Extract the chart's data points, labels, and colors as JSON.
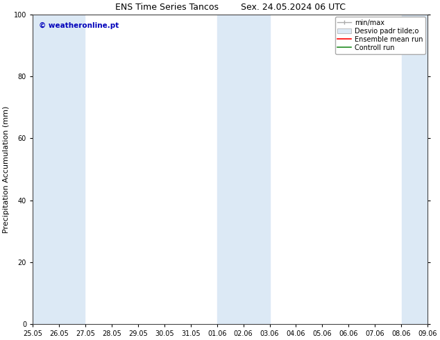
{
  "title_left": "ENS Time Series Tancos",
  "title_right": "Sex. 24.05.2024 06 UTC",
  "ylabel": "Precipitation Accumulation (mm)",
  "ylim": [
    0,
    100
  ],
  "yticks": [
    0,
    20,
    40,
    60,
    80,
    100
  ],
  "x_tick_labels": [
    "25.05",
    "26.05",
    "27.05",
    "28.05",
    "29.05",
    "30.05",
    "31.05",
    "01.06",
    "02.06",
    "03.06",
    "04.06",
    "05.06",
    "06.06",
    "07.06",
    "08.06",
    "09.06"
  ],
  "x_tick_positions": [
    0,
    1,
    2,
    3,
    4,
    5,
    6,
    7,
    8,
    9,
    10,
    11,
    12,
    13,
    14,
    15
  ],
  "shaded_bands": [
    {
      "x_start": 0.0,
      "x_end": 1.97,
      "color": "#dce9f5"
    },
    {
      "x_start": 7.0,
      "x_end": 9.0,
      "color": "#dce9f5"
    },
    {
      "x_start": 14.03,
      "x_end": 15.0,
      "color": "#dce9f5"
    }
  ],
  "legend_labels": [
    "min/max",
    "Desvio padr tilde;o",
    "Ensemble mean run",
    "Controll run"
  ],
  "minmax_color": "#aaaaaa",
  "desvio_color": "#dce9f5",
  "ensemble_color": "#ff0000",
  "control_color": "#228b22",
  "watermark_text": "© weatheronline.pt",
  "watermark_color": "#0000bb",
  "background_color": "#ffffff",
  "plot_bg_color": "#ffffff",
  "title_fontsize": 9,
  "ylabel_fontsize": 8,
  "tick_fontsize": 7,
  "legend_fontsize": 7,
  "watermark_fontsize": 7.5
}
